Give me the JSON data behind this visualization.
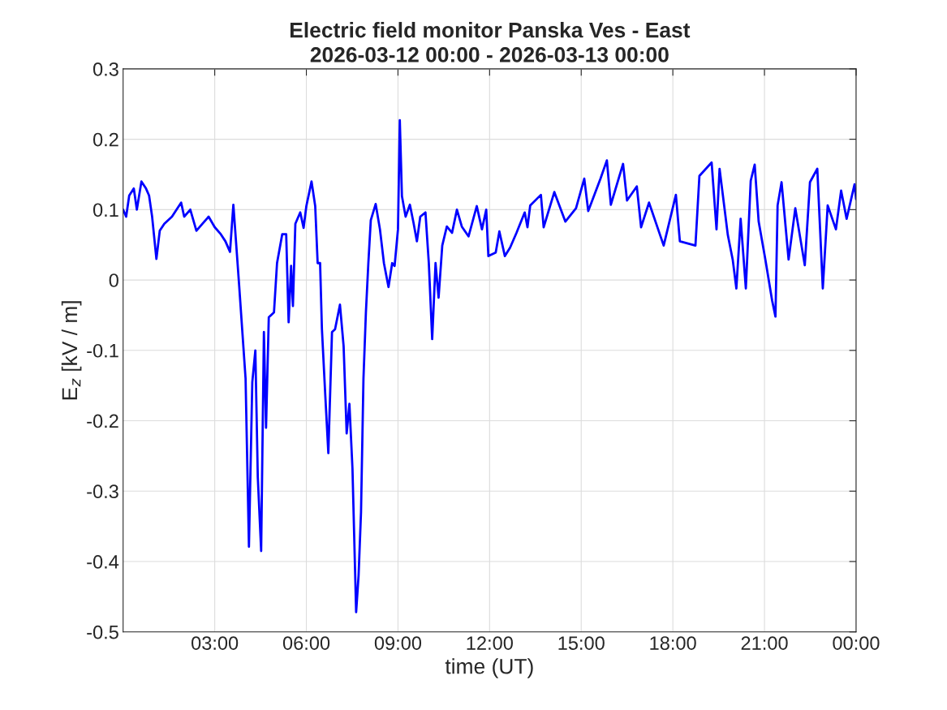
{
  "chart_data": {
    "type": "line",
    "title": "Electric field monitor Panska Ves - East",
    "subtitle": "2026-03-12 00:00 - 2026-03-13 00:00",
    "xlabel": "time (UT)",
    "ylabel": "E$_{z}$ [kV / m]",
    "xlim": [
      0,
      24
    ],
    "xticks": [
      {
        "value": 3,
        "label": "03:00"
      },
      {
        "value": 6,
        "label": "06:00"
      },
      {
        "value": 9,
        "label": "09:00"
      },
      {
        "value": 12,
        "label": "12:00"
      },
      {
        "value": 15,
        "label": "15:00"
      },
      {
        "value": 18,
        "label": "18:00"
      },
      {
        "value": 21,
        "label": "21:00"
      },
      {
        "value": 24,
        "label": "00:00"
      }
    ],
    "ylim": [
      -0.5,
      0.3
    ],
    "yticks": [
      -0.5,
      -0.4,
      -0.3,
      -0.2,
      -0.1,
      0,
      0.1,
      0.2,
      0.3
    ],
    "grid": true,
    "legend": false,
    "series": [
      {
        "color": "#0000ff",
        "x": [
          0.0,
          0.1,
          0.2,
          0.35,
          0.45,
          0.6,
          0.75,
          0.85,
          0.95,
          1.09,
          1.2,
          1.35,
          1.6,
          1.9,
          2.0,
          2.2,
          2.4,
          2.6,
          2.8,
          3.0,
          3.2,
          3.35,
          3.5,
          3.61,
          3.8,
          4.01,
          4.12,
          4.23,
          4.33,
          4.41,
          4.52,
          4.61,
          4.68,
          4.77,
          4.94,
          5.04,
          5.21,
          5.34,
          5.42,
          5.5,
          5.56,
          5.64,
          5.8,
          5.91,
          6.0,
          6.17,
          6.29,
          6.37,
          6.45,
          6.51,
          6.62,
          6.72,
          6.84,
          6.94,
          7.1,
          7.22,
          7.32,
          7.41,
          7.51,
          7.63,
          7.71,
          7.79,
          7.87,
          7.95,
          8.03,
          8.11,
          8.27,
          8.41,
          8.54,
          8.69,
          8.81,
          8.89,
          9.0,
          9.06,
          9.13,
          9.25,
          9.39,
          9.51,
          9.62,
          9.73,
          9.9,
          10.01,
          10.12,
          10.23,
          10.33,
          10.45,
          10.6,
          10.77,
          10.93,
          11.09,
          11.31,
          11.58,
          11.75,
          11.89,
          11.96,
          12.2,
          12.32,
          12.5,
          12.67,
          12.88,
          13.15,
          13.24,
          13.33,
          13.68,
          13.77,
          14.12,
          14.48,
          14.83,
          15.1,
          15.23,
          15.63,
          15.84,
          15.97,
          16.37,
          16.5,
          16.82,
          16.96,
          17.22,
          17.7,
          18.1,
          18.23,
          18.74,
          18.87,
          19.27,
          19.43,
          19.53,
          19.8,
          19.96,
          20.08,
          20.22,
          20.39,
          20.55,
          20.68,
          20.81,
          21.03,
          21.25,
          21.36,
          21.43,
          21.56,
          21.79,
          22.01,
          22.32,
          22.49,
          22.73,
          22.91,
          23.07,
          23.34,
          23.51,
          23.69,
          23.95,
          24.0
        ],
        "values": [
          0.1,
          0.09,
          0.12,
          0.13,
          0.1,
          0.14,
          0.13,
          0.12,
          0.09,
          0.03,
          0.07,
          0.08,
          0.09,
          0.11,
          0.09,
          0.1,
          0.07,
          0.08,
          0.09,
          0.075,
          0.065,
          0.055,
          0.04,
          0.107,
          -0.008,
          -0.14,
          -0.379,
          -0.145,
          -0.1,
          -0.28,
          -0.385,
          -0.074,
          -0.21,
          -0.053,
          -0.046,
          0.024,
          0.065,
          0.065,
          -0.06,
          0.02,
          -0.037,
          0.08,
          0.096,
          0.074,
          0.105,
          0.14,
          0.105,
          0.024,
          0.024,
          -0.07,
          -0.164,
          -0.246,
          -0.074,
          -0.07,
          -0.035,
          -0.094,
          -0.218,
          -0.176,
          -0.268,
          -0.472,
          -0.42,
          -0.33,
          -0.14,
          -0.046,
          0.024,
          0.085,
          0.108,
          0.072,
          0.024,
          -0.01,
          0.024,
          0.02,
          0.072,
          0.227,
          0.119,
          0.09,
          0.107,
          0.081,
          0.055,
          0.09,
          0.096,
          0.024,
          -0.084,
          0.024,
          -0.025,
          0.049,
          0.076,
          0.067,
          0.1,
          0.076,
          0.062,
          0.105,
          0.072,
          0.1,
          0.034,
          0.039,
          0.069,
          0.034,
          0.046,
          0.067,
          0.096,
          0.075,
          0.106,
          0.121,
          0.075,
          0.125,
          0.083,
          0.102,
          0.144,
          0.098,
          0.144,
          0.17,
          0.107,
          0.165,
          0.113,
          0.133,
          0.075,
          0.11,
          0.049,
          0.121,
          0.055,
          0.049,
          0.148,
          0.167,
          0.072,
          0.158,
          0.064,
          0.029,
          -0.012,
          0.087,
          -0.012,
          0.141,
          0.164,
          0.083,
          0.029,
          -0.029,
          -0.052,
          0.106,
          0.139,
          0.029,
          0.102,
          0.021,
          0.139,
          0.158,
          -0.012,
          0.106,
          0.072,
          0.127,
          0.087,
          0.136,
          0.115
        ]
      }
    ]
  }
}
